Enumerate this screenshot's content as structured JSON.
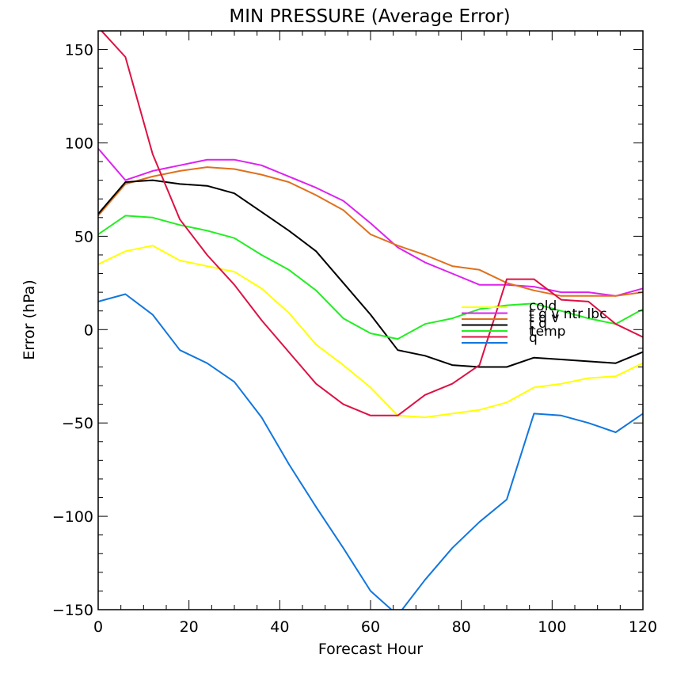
{
  "chart_data": {
    "type": "line",
    "title": "MIN PRESSURE (Average Error)",
    "xlabel": "Forecast Hour",
    "ylabel": "Error (hPa)",
    "xlim": [
      0,
      120
    ],
    "ylim": [
      -150,
      160
    ],
    "x_ticks": [
      0,
      20,
      40,
      60,
      80,
      100,
      120
    ],
    "y_ticks": [
      150,
      100,
      50,
      0,
      -50,
      -100,
      -150
    ],
    "x_tick_labels": [
      "0",
      "20",
      "40",
      "60",
      "80",
      "100",
      "120"
    ],
    "y_tick_labels": [
      "150",
      "100",
      "50",
      "0",
      "−50",
      "−100",
      "−150"
    ],
    "legend_position": "center-right",
    "series": [
      {
        "name": "cold",
        "color": "#ffff00",
        "x": [
          0,
          6,
          12,
          18,
          24,
          30,
          36,
          42,
          48,
          54,
          60,
          66,
          72,
          78,
          84,
          90,
          96,
          102,
          108,
          114,
          120
        ],
        "y": [
          35,
          42,
          45,
          37,
          34,
          31,
          22,
          9,
          -8,
          -19,
          -31,
          -46,
          -47,
          -45,
          -43,
          -39,
          -31,
          -29,
          -26,
          -25,
          -18
        ]
      },
      {
        "name": "t q v ntr lbc",
        "color": "#dd22ee",
        "x": [
          0,
          6,
          12,
          18,
          24,
          30,
          36,
          42,
          48,
          54,
          60,
          66,
          72,
          78,
          84,
          90,
          96,
          102,
          108,
          114,
          120
        ],
        "y": [
          97,
          80,
          85,
          88,
          91,
          91,
          88,
          82,
          76,
          69,
          57,
          44,
          36,
          30,
          24,
          24,
          23,
          20,
          20,
          18,
          22
        ]
      },
      {
        "name": "t q v",
        "color": "#e0701c",
        "x": [
          0,
          6,
          12,
          18,
          24,
          30,
          36,
          42,
          48,
          54,
          60,
          66,
          72,
          78,
          84,
          90,
          96,
          102,
          108,
          114,
          120
        ],
        "y": [
          61,
          78,
          82,
          85,
          87,
          86,
          83,
          79,
          72,
          64,
          51,
          45,
          40,
          34,
          32,
          25,
          21,
          18,
          18,
          18,
          20
        ]
      },
      {
        "name": "t q",
        "color": "#000000",
        "x": [
          0,
          6,
          12,
          18,
          24,
          30,
          36,
          42,
          48,
          54,
          60,
          66,
          72,
          78,
          84,
          90,
          96,
          102,
          108,
          114,
          120
        ],
        "y": [
          62,
          79,
          80,
          78,
          77,
          73,
          63,
          53,
          42,
          25,
          8,
          -11,
          -14,
          -19,
          -20,
          -20,
          -15,
          -16,
          -17,
          -18,
          -12
        ]
      },
      {
        "name": "temp",
        "color": "#22ee22",
        "x": [
          0,
          6,
          12,
          18,
          24,
          30,
          36,
          42,
          48,
          54,
          60,
          66,
          72,
          78,
          84,
          90,
          96,
          102,
          108,
          114,
          120
        ],
        "y": [
          51,
          61,
          60,
          56,
          53,
          49,
          40,
          32,
          21,
          6,
          -2,
          -5,
          3,
          6,
          11,
          13,
          14,
          10,
          6,
          3,
          11
        ]
      },
      {
        "name": "t",
        "color": "#dd1144",
        "x": [
          0,
          6,
          12,
          18,
          24,
          30,
          36,
          42,
          48,
          54,
          60,
          66,
          72,
          78,
          84,
          90,
          96,
          102,
          108,
          114,
          120
        ],
        "y": [
          162,
          146,
          94,
          59,
          40,
          24,
          5,
          -12,
          -29,
          -40,
          -46,
          -46,
          -35,
          -29,
          -19,
          27,
          27,
          16,
          15,
          3,
          -4
        ]
      },
      {
        "name": "q",
        "color": "#1177dd",
        "x": [
          0,
          6,
          12,
          18,
          24,
          30,
          36,
          42,
          48,
          54,
          60,
          66,
          72,
          78,
          84,
          90,
          96,
          102,
          108,
          114,
          120
        ],
        "y": [
          15,
          19,
          8,
          -11,
          -18,
          -28,
          -47,
          -72,
          -95,
          -117,
          -140,
          -153,
          -134,
          -117,
          -103,
          -91,
          -45,
          -46,
          -50,
          -55,
          -45
        ]
      }
    ]
  }
}
